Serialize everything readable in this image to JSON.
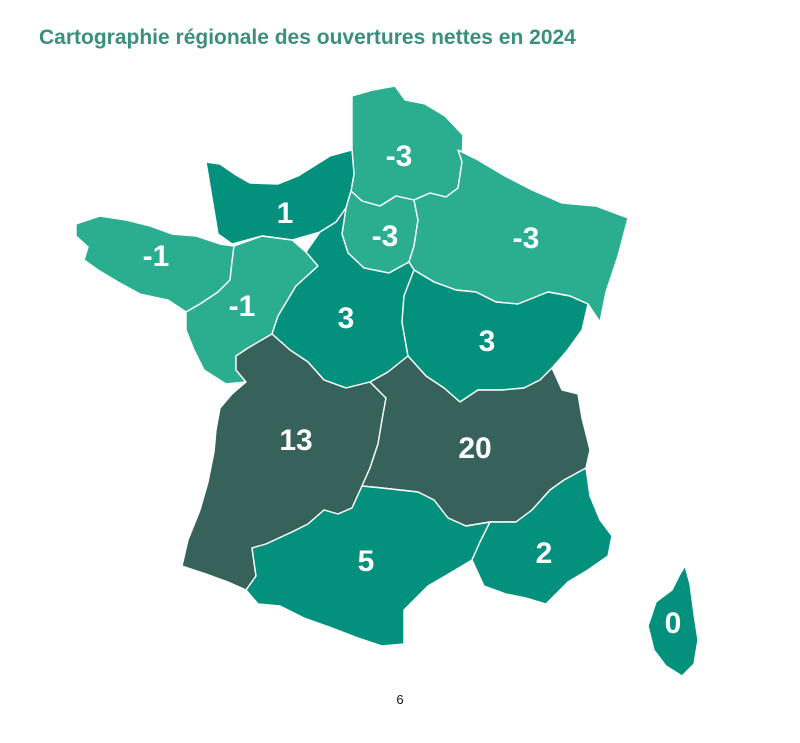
{
  "title": "Cartographie régionale des ouvertures nettes en 2024",
  "page_number": "6",
  "colors": {
    "negative": "#2aae8f",
    "low_positive": "#03917d",
    "high_positive": "#37625c",
    "title": "#3a8f7f",
    "border": "#ffffff"
  },
  "regions": [
    {
      "id": "hauts-de-france",
      "value": "-3"
    },
    {
      "id": "normandie",
      "value": "1"
    },
    {
      "id": "ile-de-france",
      "value": "-3"
    },
    {
      "id": "grand-est",
      "value": "-3"
    },
    {
      "id": "bretagne",
      "value": "-1"
    },
    {
      "id": "pays-de-la-loire",
      "value": "-1"
    },
    {
      "id": "centre-val-de-loire",
      "value": "3"
    },
    {
      "id": "bourgogne-franche-comte",
      "value": "3"
    },
    {
      "id": "nouvelle-aquitaine",
      "value": "13"
    },
    {
      "id": "auvergne-rhone-alpes",
      "value": "20"
    },
    {
      "id": "occitanie",
      "value": "5"
    },
    {
      "id": "provence-alpes-cote-d-azur",
      "value": "2"
    },
    {
      "id": "corse",
      "value": "0"
    }
  ]
}
